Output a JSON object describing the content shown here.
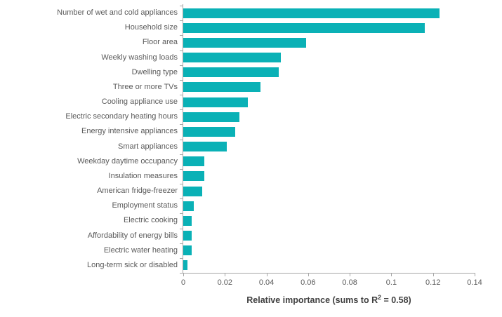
{
  "chart_data": {
    "type": "bar",
    "orientation": "horizontal",
    "title": "",
    "xlabel": "Relative importance (sums to R² = 0.58)",
    "xlabel_parts": {
      "pre": "Relative importance (sums to R",
      "sup": "2",
      "post": " = 0.58)"
    },
    "categories": [
      "Number of wet and cold appliances",
      "Household size",
      "Floor area",
      "Weekly washing loads",
      "Dwelling type",
      "Three or more TVs",
      "Cooling appliance use",
      "Electric secondary heating hours",
      "Energy intensive appliances",
      "Smart appliances",
      "Weekday daytime occupancy",
      "Insulation measures",
      "American fridge-freezer",
      "Employment status",
      "Electric cooking",
      "Affordability of energy bills",
      "Electric water heating",
      "Long-term sick or disabled"
    ],
    "values": [
      0.123,
      0.116,
      0.059,
      0.047,
      0.046,
      0.037,
      0.031,
      0.027,
      0.025,
      0.021,
      0.01,
      0.01,
      0.009,
      0.005,
      0.004,
      0.004,
      0.004,
      0.002
    ],
    "xlim": [
      0,
      0.14
    ],
    "x_tick_values": [
      0,
      0.02,
      0.04,
      0.06,
      0.08,
      0.1,
      0.12,
      0.14
    ],
    "x_tick_labels": [
      "0",
      "0.02",
      "0.04",
      "0.06",
      "0.08",
      "0.1",
      "0.12",
      "0.14"
    ],
    "grid": false,
    "legend": "none",
    "colors": {
      "bar": "#0AB1B6",
      "axis": "#A6A6A6",
      "category_text": "#595959",
      "tick_text": "#595959",
      "axis_title_text": "#404040"
    }
  }
}
